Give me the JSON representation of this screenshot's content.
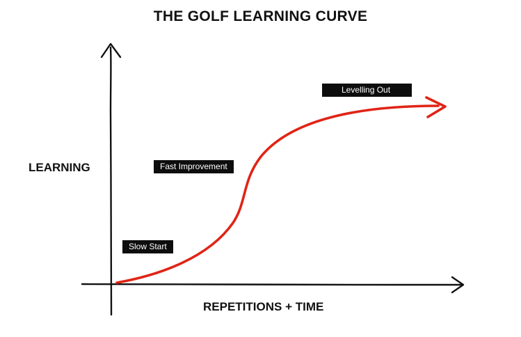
{
  "title": "THE GOLF LEARNING CURVE",
  "y_axis_label": "LEARNING",
  "x_axis_label": "REPETITIONS + TIME",
  "stages": [
    {
      "label": "Slow Start"
    },
    {
      "label": "Fast Improvement"
    },
    {
      "label": "Levelling Out"
    }
  ],
  "colors": {
    "curve": "#e02416",
    "axes": "#111111",
    "label_background": "#0d0d0d",
    "label_text": "#ffffff"
  }
}
